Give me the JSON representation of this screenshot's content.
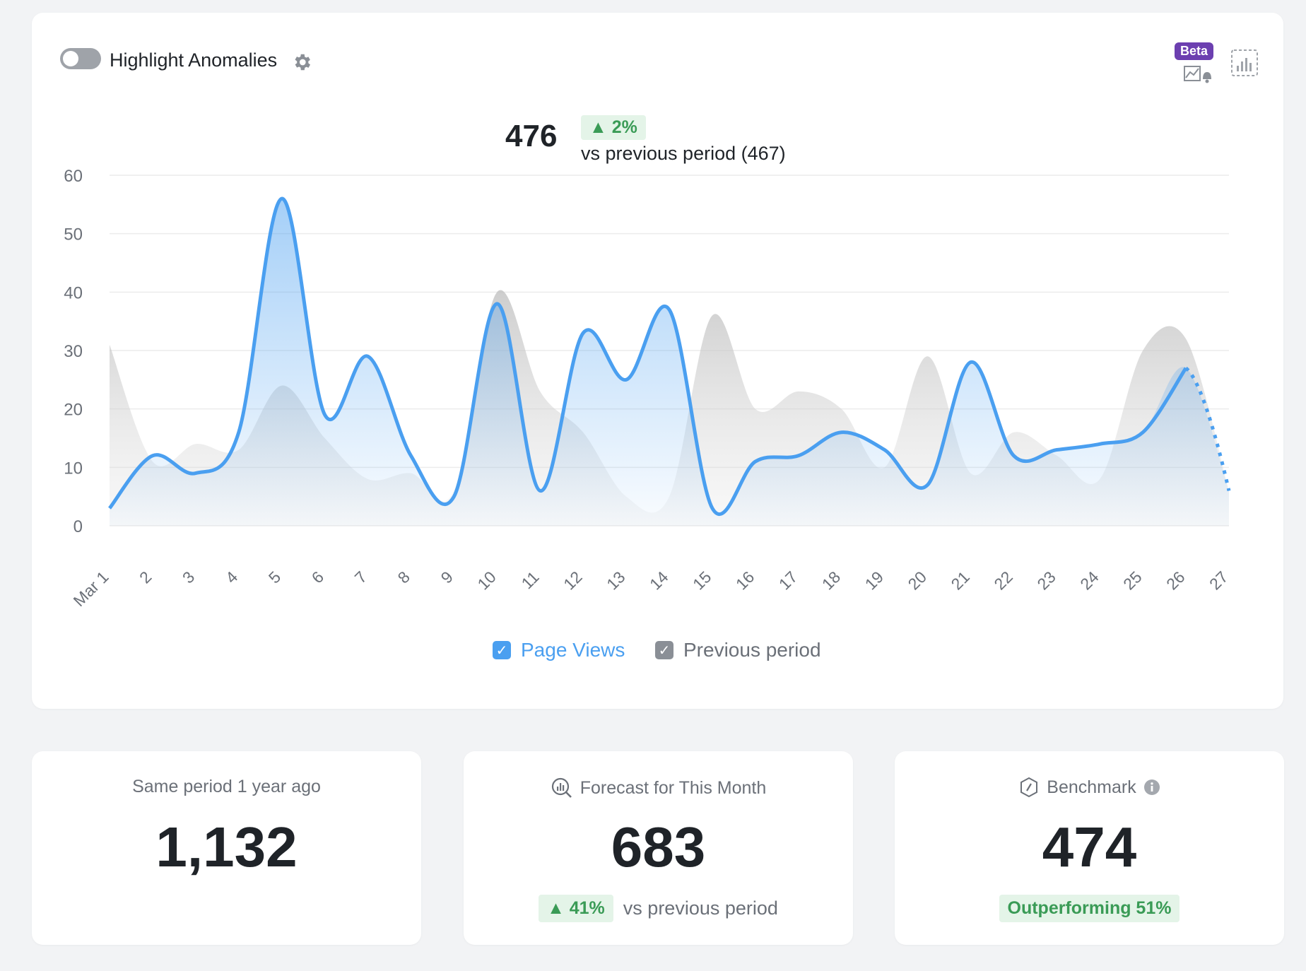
{
  "toolbar": {
    "anomalies_label": "Highlight Anomalies",
    "anomalies_enabled": false,
    "beta_label": "Beta"
  },
  "kpi": {
    "value": "476",
    "change": "▲ 2%",
    "compare_text": "vs previous period (467)"
  },
  "colors": {
    "primary": "#4a9ff0",
    "previous": "#c8c8c8",
    "positive": "#3a9b56"
  },
  "chart_data": {
    "type": "area",
    "x": [
      "Mar 1",
      "2",
      "3",
      "4",
      "5",
      "6",
      "7",
      "8",
      "9",
      "10",
      "11",
      "12",
      "13",
      "14",
      "15",
      "16",
      "17",
      "18",
      "19",
      "20",
      "21",
      "22",
      "23",
      "24",
      "25",
      "26",
      "27"
    ],
    "ylim": [
      0,
      60
    ],
    "yticks": [
      "0",
      "10",
      "20",
      "30",
      "40",
      "50",
      "60"
    ],
    "grid": true,
    "legend_position": "bottom-center",
    "series": [
      {
        "name": "Page Views",
        "values": [
          3,
          12,
          9,
          16,
          56,
          19,
          29,
          12,
          5,
          38,
          6,
          33,
          25,
          37,
          3,
          11,
          12,
          16,
          13,
          7,
          28,
          12,
          13,
          14,
          16,
          27,
          6
        ],
        "last_point_projected": true
      },
      {
        "name": "Previous period",
        "values": [
          31,
          11,
          14,
          13,
          24,
          15,
          8,
          9,
          6,
          40,
          23,
          16,
          5,
          5,
          36,
          20,
          23,
          20,
          10,
          29,
          9,
          16,
          12,
          8,
          30,
          32,
          6
        ]
      }
    ]
  },
  "legend": {
    "page_views": "Page Views",
    "previous": "Previous period"
  },
  "stats": {
    "year_ago": {
      "title": "Same period 1 year ago",
      "value": "1,132"
    },
    "forecast": {
      "title": "Forecast for This Month",
      "value": "683",
      "change": "▲ 41%",
      "compare": "vs previous period"
    },
    "benchmark": {
      "title": "Benchmark",
      "value": "474",
      "status": "Outperforming 51%"
    }
  }
}
